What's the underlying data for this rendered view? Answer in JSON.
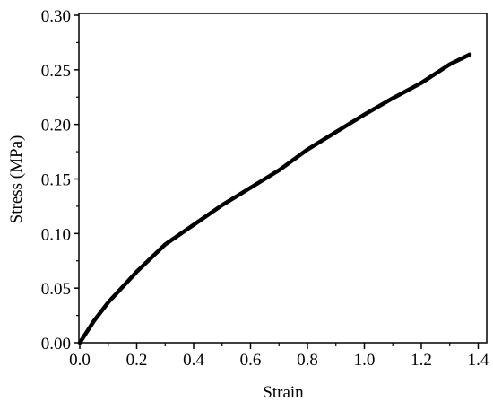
{
  "chart_data": {
    "type": "line",
    "x_label": "Strain",
    "y_label": "Stress (MPa)",
    "xlim": [
      0,
      1.43
    ],
    "ylim": [
      0,
      0.3
    ],
    "xticks": [
      {
        "value": 0,
        "label": "0.0"
      },
      0.2,
      0.4,
      0.6,
      0.8,
      {
        "value": 1,
        "label": "1.0"
      },
      1.2,
      1.4
    ],
    "yticks": [
      {
        "value": 0,
        "label": "0.00"
      },
      0.05,
      {
        "value": 0.1,
        "label": "0.10"
      },
      0.15,
      {
        "value": 0.2,
        "label": "0.20"
      },
      0.25,
      {
        "value": 0.3,
        "label": "0.30"
      }
    ],
    "series": [
      {
        "color": "#000000",
        "x": [
          0,
          0.05,
          0.1,
          0.2,
          0.3,
          0.4,
          0.5,
          0.6,
          0.7,
          0.8,
          0.9,
          1.0,
          1.1,
          1.2,
          1.3,
          1.37
        ],
        "values": [
          0,
          0.02,
          0.037,
          0.065,
          0.09,
          0.108,
          0.126,
          0.142,
          0.158,
          0.177,
          0.193,
          0.209,
          0.224,
          0.238,
          0.255,
          0.264
        ]
      }
    ]
  }
}
